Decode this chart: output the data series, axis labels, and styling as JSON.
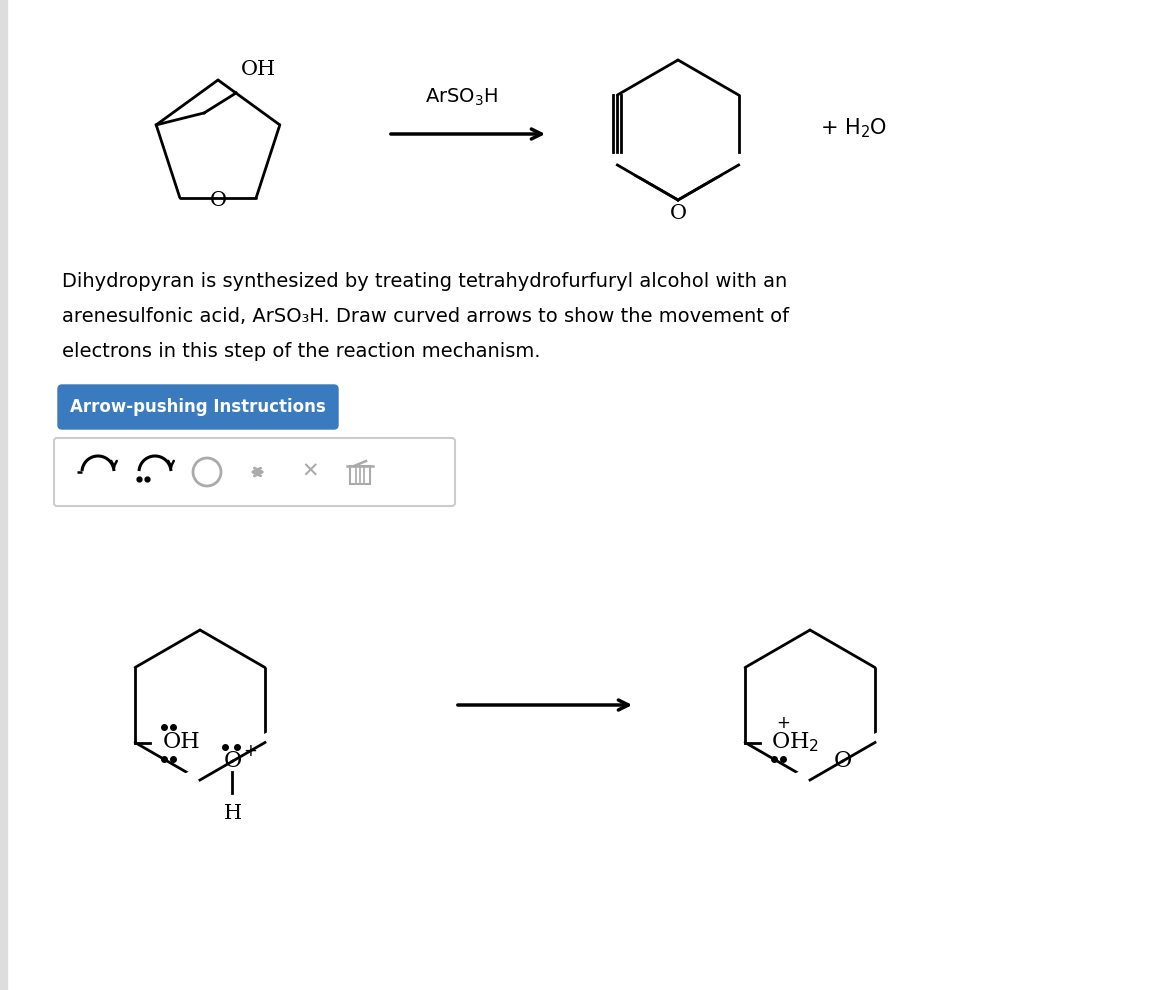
{
  "bg_color": "#ffffff",
  "mol_color": "#000000",
  "gray_color": "#aaaaaa",
  "desc_line1": "Dihydropyran is synthesized by treating tetrahydrofurfuryl alcohol with an",
  "desc_line2": "arenesulfonic acid, ArSO₃H. Draw curved arrows to show the movement of",
  "desc_line3": "electrons in this step of the reaction mechanism.",
  "button_text": "Arrow-pushing Instructions",
  "button_bg": "#3a7abf",
  "button_text_color": "#ffffff",
  "toolbar_border": "#cccccc",
  "lw": 2.0,
  "font_size_mol": 15,
  "font_size_desc": 14
}
